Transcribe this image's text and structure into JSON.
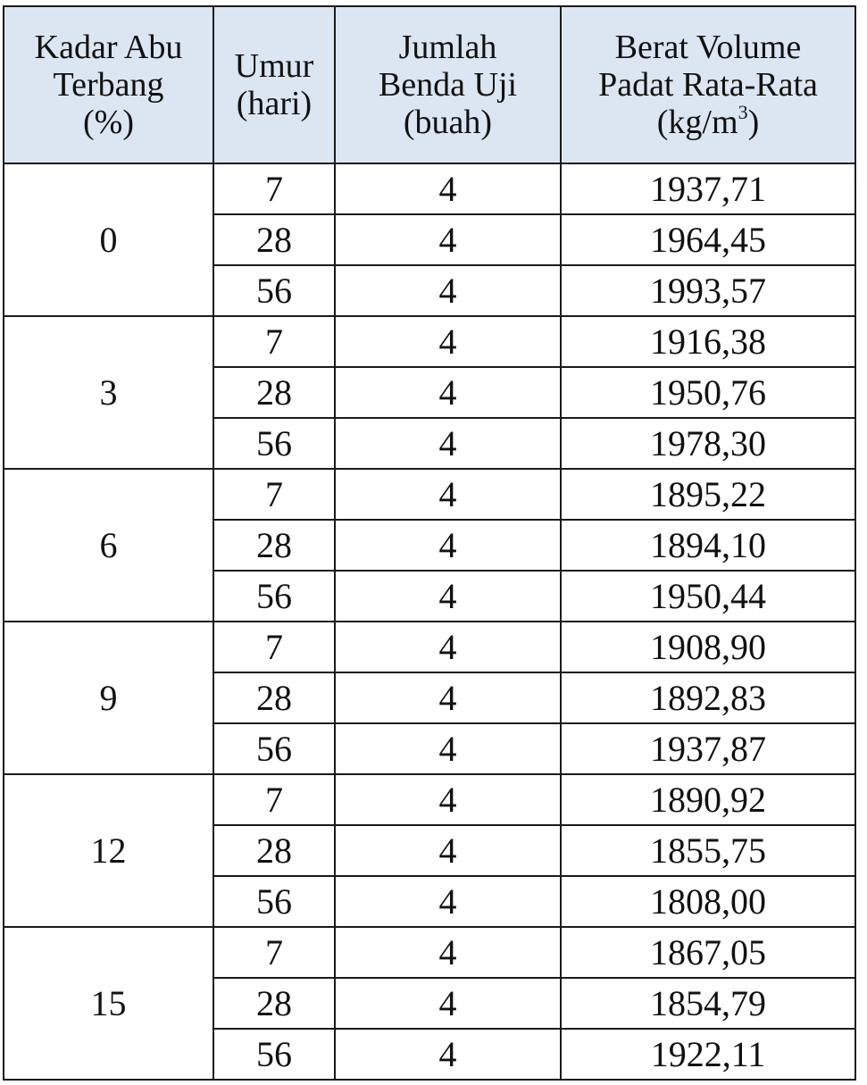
{
  "headers": {
    "col1": [
      "Kadar Abu",
      "Terbang",
      "(%)"
    ],
    "col2": [
      "Umur",
      "(hari)"
    ],
    "col3": [
      "Jumlah",
      "Benda Uji",
      "(buah)"
    ],
    "col4": [
      "Berat Volume",
      "Padat Rata-Rata",
      "(kg/m",
      "3",
      ")"
    ]
  },
  "header_bg_color": "#dce6f2",
  "groups": [
    {
      "kadar": "0",
      "rows": [
        [
          "7",
          "4",
          "1937,71"
        ],
        [
          "28",
          "4",
          "1964,45"
        ],
        [
          "56",
          "4",
          "1993,57"
        ]
      ]
    },
    {
      "kadar": "3",
      "rows": [
        [
          "7",
          "4",
          "1916,38"
        ],
        [
          "28",
          "4",
          "1950,76"
        ],
        [
          "56",
          "4",
          "1978,30"
        ]
      ]
    },
    {
      "kadar": "6",
      "rows": [
        [
          "7",
          "4",
          "1895,22"
        ],
        [
          "28",
          "4",
          "1894,10"
        ],
        [
          "56",
          "4",
          "1950,44"
        ]
      ]
    },
    {
      "kadar": "9",
      "rows": [
        [
          "7",
          "4",
          "1908,90"
        ],
        [
          "28",
          "4",
          "1892,83"
        ],
        [
          "56",
          "4",
          "1937,87"
        ]
      ]
    },
    {
      "kadar": "12",
      "rows": [
        [
          "7",
          "4",
          "1890,92"
        ],
        [
          "28",
          "4",
          "1855,75"
        ],
        [
          "56",
          "4",
          "1808,00"
        ]
      ]
    },
    {
      "kadar": "15",
      "rows": [
        [
          "7",
          "4",
          "1867,05"
        ],
        [
          "28",
          "4",
          "1854,79"
        ],
        [
          "56",
          "4",
          "1922,11"
        ]
      ]
    }
  ]
}
